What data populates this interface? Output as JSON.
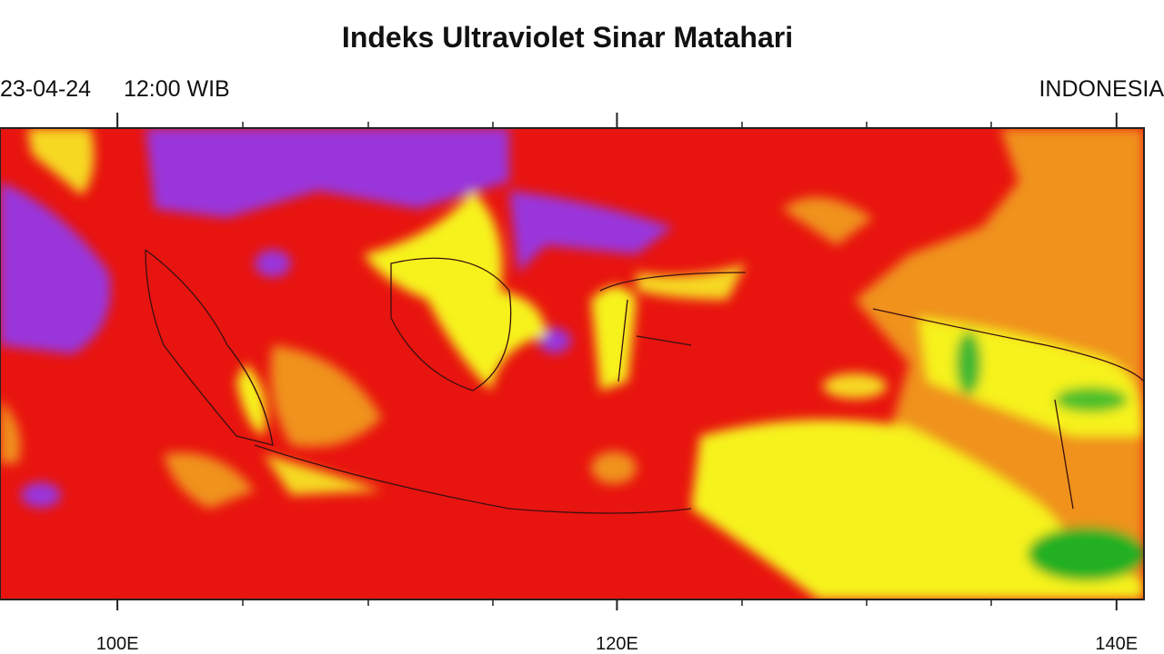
{
  "header": {
    "title": "Indeks Ultraviolet Sinar Matahari",
    "date": "23-04-24",
    "time": "12:00 WIB",
    "region": "INDONESIA"
  },
  "map": {
    "xlim": [
      95.3,
      141.1
    ],
    "xticks": [
      {
        "value": 100,
        "label": "100E"
      },
      {
        "value": 120,
        "label": "120E"
      },
      {
        "value": 140,
        "label": "140E"
      }
    ]
  }
}
